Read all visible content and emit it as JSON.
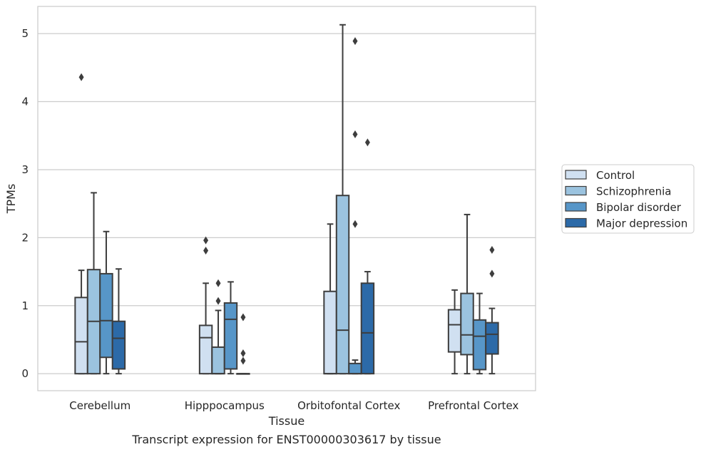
{
  "chart_data": {
    "type": "box",
    "caption": "Transcript expression for ENST00000303617 by tissue",
    "xlabel": "Tissue",
    "ylabel": "TPMs",
    "ylim": [
      -0.25,
      5.4
    ],
    "yticks": [
      0,
      1,
      2,
      3,
      4,
      5
    ],
    "grid": "horizontal",
    "legend_position": "right",
    "categories": [
      "Cerebellum",
      "Hipppocampus",
      "Orbitofontal Cortex",
      "Prefrontal Cortex"
    ],
    "series": [
      {
        "name": "Control",
        "color": "#d0e0f1",
        "boxes": [
          {
            "whisker_low": 0,
            "q1": 0,
            "median": 0.47,
            "q3": 1.12,
            "whisker_high": 1.52,
            "outliers": [
              4.36
            ]
          },
          {
            "whisker_low": 0,
            "q1": 0,
            "median": 0.53,
            "q3": 0.71,
            "whisker_high": 1.33,
            "outliers": [
              1.81,
              1.96
            ]
          },
          {
            "whisker_low": 0,
            "q1": 0,
            "median": 0,
            "q3": 1.21,
            "whisker_high": 2.2,
            "outliers": []
          },
          {
            "whisker_low": 0,
            "q1": 0.32,
            "median": 0.72,
            "q3": 0.94,
            "whisker_high": 1.23,
            "outliers": []
          }
        ]
      },
      {
        "name": "Schizophrenia",
        "color": "#9bc3df",
        "boxes": [
          {
            "whisker_low": 0,
            "q1": 0,
            "median": 0.77,
            "q3": 1.53,
            "whisker_high": 2.66,
            "outliers": []
          },
          {
            "whisker_low": 0,
            "q1": 0,
            "median": 0,
            "q3": 0.39,
            "whisker_high": 0.93,
            "outliers": [
              1.07,
              1.33
            ]
          },
          {
            "whisker_low": 0,
            "q1": 0,
            "median": 0.64,
            "q3": 2.62,
            "whisker_high": 5.13,
            "outliers": []
          },
          {
            "whisker_low": 0,
            "q1": 0.28,
            "median": 0.57,
            "q3": 1.18,
            "whisker_high": 2.34,
            "outliers": []
          }
        ]
      },
      {
        "name": "Bipolar disorder",
        "color": "#5796c8",
        "boxes": [
          {
            "whisker_low": 0,
            "q1": 0.24,
            "median": 0.78,
            "q3": 1.47,
            "whisker_high": 2.09,
            "outliers": []
          },
          {
            "whisker_low": 0,
            "q1": 0.07,
            "median": 0.8,
            "q3": 1.04,
            "whisker_high": 1.35,
            "outliers": []
          },
          {
            "whisker_low": 0,
            "q1": 0,
            "median": 0,
            "q3": 0.15,
            "whisker_high": 0.2,
            "outliers": [
              2.2,
              3.52,
              4.89
            ]
          },
          {
            "whisker_low": 0,
            "q1": 0.06,
            "median": 0.55,
            "q3": 0.79,
            "whisker_high": 1.18,
            "outliers": []
          }
        ]
      },
      {
        "name": "Major depression",
        "color": "#2c6aa8",
        "boxes": [
          {
            "whisker_low": 0,
            "q1": 0.07,
            "median": 0.52,
            "q3": 0.77,
            "whisker_high": 1.54,
            "outliers": []
          },
          {
            "whisker_low": 0,
            "q1": 0,
            "median": 0,
            "q3": 0,
            "whisker_high": 0,
            "outliers": [
              0.19,
              0.3,
              0.83
            ]
          },
          {
            "whisker_low": 0,
            "q1": 0,
            "median": 0.6,
            "q3": 1.33,
            "whisker_high": 1.5,
            "outliers": [
              3.4
            ]
          },
          {
            "whisker_low": 0,
            "q1": 0.29,
            "median": 0.58,
            "q3": 0.75,
            "whisker_high": 0.96,
            "outliers": [
              1.47,
              1.82
            ]
          }
        ]
      }
    ]
  }
}
